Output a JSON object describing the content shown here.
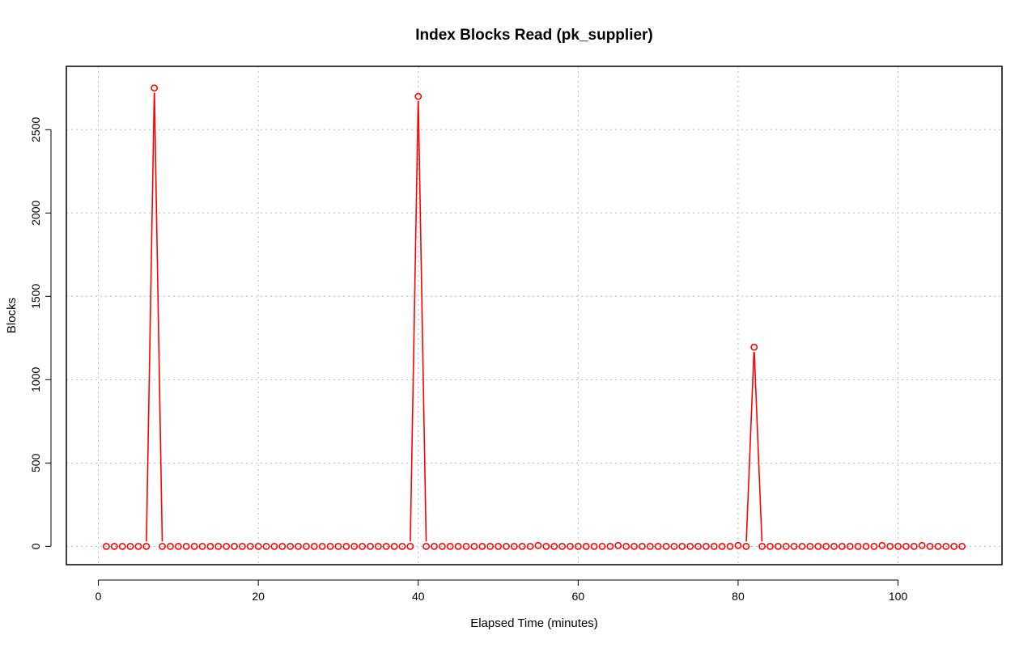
{
  "chart_data": {
    "type": "line",
    "title": "Index Blocks Read (pk_supplier)",
    "xlabel": "Elapsed Time (minutes)",
    "ylabel": "Blocks",
    "xlim": [
      -4,
      113
    ],
    "ylim": [
      -110,
      2880
    ],
    "x_ticks": [
      0,
      20,
      40,
      60,
      80,
      100
    ],
    "y_ticks": [
      0,
      500,
      1000,
      1500,
      2000,
      2500
    ],
    "grid": true,
    "line_style": "b",
    "point_marker": "open-circle",
    "series": [
      {
        "color": "#ff0000",
        "x": [
          1,
          2,
          3,
          4,
          5,
          6,
          7,
          8,
          9,
          10,
          11,
          12,
          13,
          14,
          15,
          16,
          17,
          18,
          19,
          20,
          21,
          22,
          23,
          24,
          25,
          26,
          27,
          28,
          29,
          30,
          31,
          32,
          33,
          34,
          35,
          36,
          37,
          38,
          39,
          40,
          41,
          42,
          43,
          44,
          45,
          46,
          47,
          48,
          49,
          50,
          51,
          52,
          53,
          54,
          55,
          56,
          57,
          58,
          59,
          60,
          61,
          62,
          63,
          64,
          65,
          66,
          67,
          68,
          69,
          70,
          71,
          72,
          73,
          74,
          75,
          76,
          77,
          78,
          79,
          80,
          81,
          82,
          83,
          84,
          85,
          86,
          87,
          88,
          89,
          90,
          91,
          92,
          93,
          94,
          95,
          96,
          97,
          98,
          99,
          100,
          101,
          102,
          103,
          104,
          105,
          106,
          107,
          108
        ],
        "y": [
          0,
          0,
          0,
          0,
          0,
          0,
          2750,
          0,
          0,
          0,
          0,
          0,
          0,
          0,
          0,
          0,
          0,
          0,
          0,
          0,
          0,
          0,
          0,
          0,
          0,
          0,
          0,
          0,
          0,
          0,
          0,
          0,
          0,
          0,
          0,
          0,
          0,
          0,
          0,
          2700,
          0,
          0,
          0,
          0,
          0,
          0,
          0,
          0,
          0,
          0,
          0,
          0,
          0,
          0,
          5,
          0,
          0,
          0,
          0,
          0,
          0,
          0,
          0,
          0,
          5,
          0,
          0,
          0,
          0,
          0,
          0,
          0,
          0,
          0,
          0,
          0,
          0,
          0,
          0,
          5,
          0,
          1195,
          0,
          0,
          0,
          0,
          0,
          0,
          0,
          0,
          0,
          0,
          0,
          0,
          0,
          0,
          0,
          5,
          0,
          0,
          0,
          0,
          5,
          0,
          0,
          0,
          0,
          0
        ]
      }
    ]
  },
  "colors": {
    "series": "#ff0000",
    "grid": "#bebebe",
    "axis": "#000000"
  }
}
